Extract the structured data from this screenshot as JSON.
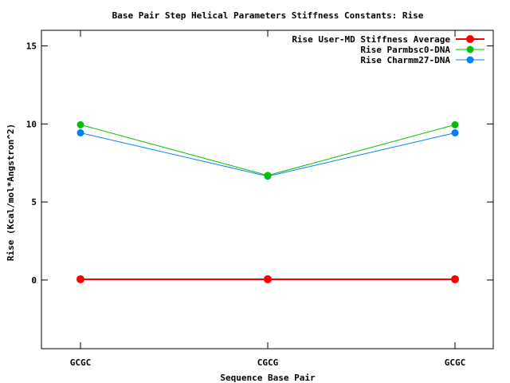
{
  "chart_data": {
    "type": "line",
    "title": "Base Pair Step Helical Parameters Stiffness Constants: Rise",
    "xlabel": "Sequence Base Pair",
    "ylabel": "Rise (Kcal/mol*Angstron^2)",
    "categories": [
      "GCGC",
      "CGCG",
      "GCGC"
    ],
    "ylim": [
      -4.4,
      16
    ],
    "yticks": [
      0,
      5,
      10,
      15
    ],
    "legend_position": "top-right",
    "grid": false,
    "series": [
      {
        "name": "Rise User-MD Stiffness Average",
        "values": [
          0.05,
          0.05,
          0.05
        ],
        "color": "#ff0000"
      },
      {
        "name": "Rise Parmbsc0-DNA",
        "values": [
          9.95,
          6.7,
          9.95
        ],
        "color": "#00c000"
      },
      {
        "name": "Rise Charmm27-DNA",
        "values": [
          9.43,
          6.65,
          9.43
        ],
        "color": "#0080ff"
      }
    ]
  }
}
